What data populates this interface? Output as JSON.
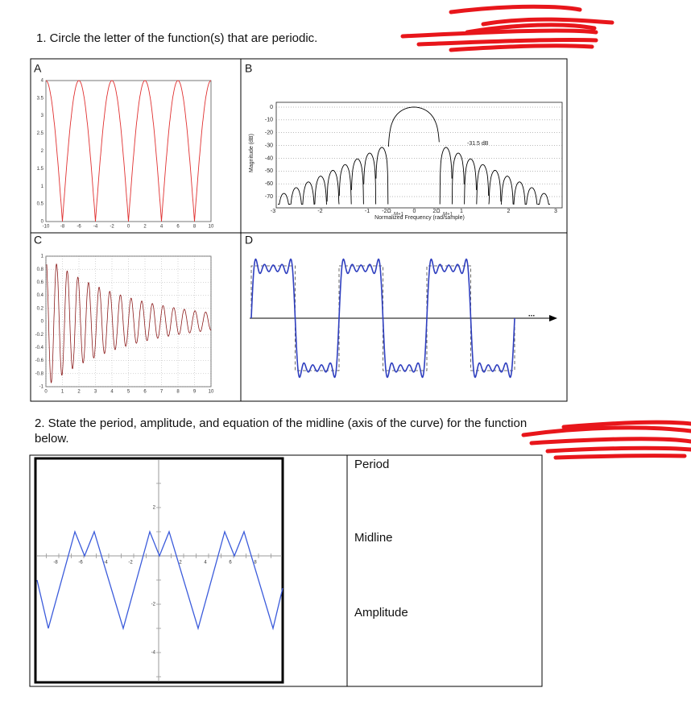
{
  "question1": {
    "text": "1. Circle the letter of the function(s) that are periodic."
  },
  "panels": [
    {
      "letter": "A",
      "xticks": [
        "-10",
        "-8",
        "-6",
        "-4",
        "-2",
        "0",
        "2",
        "4",
        "6",
        "8",
        "10"
      ],
      "yticks": [
        "0",
        "0.5",
        "1",
        "1.5",
        "2",
        "2.5",
        "3",
        "3.5",
        "4"
      ]
    },
    {
      "letter": "B",
      "ylabel": "Magnitude (dB)",
      "yticks": [
        "0",
        "-10",
        "-20",
        "-30",
        "-40",
        "-50",
        "-60",
        "-70"
      ],
      "xticks": [
        "-3",
        "-2",
        "-1",
        "0",
        "1",
        "2",
        "3"
      ],
      "omega_ticks": [
        "-2Ω",
        "2Ω"
      ],
      "omega_subscript": "M+1",
      "xlabel": "Normalized Frequency (rad/sample)",
      "annotation": "-31.5 dB"
    },
    {
      "letter": "C",
      "xticks": [
        "0",
        "1",
        "2",
        "3",
        "4",
        "5",
        "6",
        "7",
        "8",
        "9",
        "10"
      ],
      "yticks": [
        "-1",
        "-0.8",
        "-0.6",
        "-0.4",
        "-0.2",
        "0",
        "0.2",
        "0.4",
        "0.6",
        "0.8",
        "1"
      ]
    },
    {
      "letter": "D",
      "annotation": "..."
    }
  ],
  "question2": {
    "line1": "2. State the period, amplitude, and equation of the midline (axis of the curve) for the function",
    "line2": "below."
  },
  "graph": {
    "xticks": [
      "-8",
      "-6",
      "-4",
      "-2",
      "2",
      "4",
      "6",
      "8"
    ],
    "yticks": [
      "2",
      "-2",
      "-4"
    ]
  },
  "answer_table": {
    "rows": [
      "Period",
      "Midline",
      "Amplitude"
    ]
  }
}
